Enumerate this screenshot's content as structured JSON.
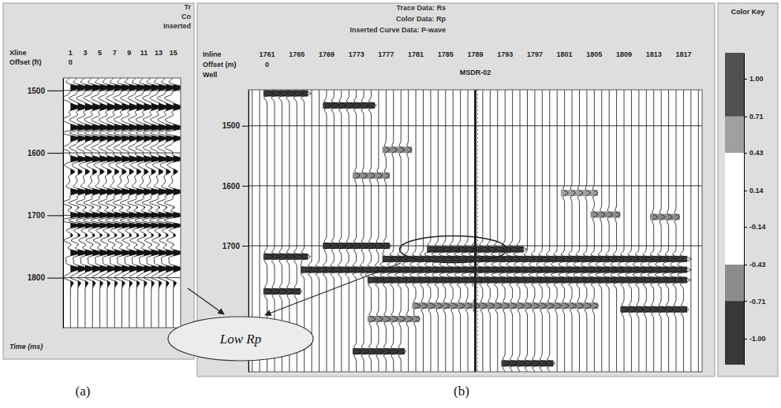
{
  "chart_data": [
    {
      "type": "seismic",
      "panel_label": "(a)",
      "header": [
        "Tr",
        "Co",
        "Inserted"
      ],
      "x_label": "Xline",
      "offset_label": "Offset (ft)",
      "offset": 0,
      "y_label": "Time (ms)",
      "xlim": [
        0,
        16
      ],
      "xticks": [
        1,
        3,
        5,
        7,
        9,
        11,
        13,
        15
      ],
      "ylim": [
        1480,
        1880
      ],
      "yticks": [
        1500,
        1600,
        1700,
        1800
      ],
      "grid": true,
      "events": [
        {
          "time": 1495,
          "rs": 0.9
        },
        {
          "time": 1512,
          "rs": -0.7
        },
        {
          "time": 1527,
          "rs": 0.8
        },
        {
          "time": 1546,
          "rs": -0.6
        },
        {
          "time": 1560,
          "rs": 0.9
        },
        {
          "time": 1576,
          "rs": 0.8
        },
        {
          "time": 1592,
          "rs": -0.7
        },
        {
          "time": 1610,
          "rs": 0.9
        },
        {
          "time": 1630,
          "rs": 0.4
        },
        {
          "time": 1662,
          "rs": 0.9
        },
        {
          "time": 1680,
          "rs": -0.8
        },
        {
          "time": 1700,
          "rs": 1.0
        },
        {
          "time": 1716,
          "rs": 0.9
        },
        {
          "time": 1740,
          "rs": -0.6
        },
        {
          "time": 1760,
          "rs": 0.9
        },
        {
          "time": 1785,
          "rs": 0.8
        },
        {
          "time": 1800,
          "rs": -0.6
        }
      ]
    },
    {
      "type": "seismic",
      "panel_label": "(b)",
      "header": [
        "Trace Data: Rs",
        "Color Data: Rp",
        "Inserted Curve Data: P-wave"
      ],
      "x_label": "Inline",
      "offset_label": "Offset (m)",
      "offset": 0,
      "well_label": "Well",
      "well": {
        "label": "MSDR-02",
        "inline": 1789
      },
      "xlim": [
        1758.5,
        1819.5
      ],
      "xticks": [
        1761,
        1765,
        1769,
        1773,
        1777,
        1781,
        1785,
        1789,
        1793,
        1797,
        1801,
        1805,
        1809,
        1813,
        1817
      ],
      "ylim": [
        1440,
        1910
      ],
      "yticks": [
        1500,
        1600,
        1700
      ],
      "grid": true,
      "events": [
        {
          "time": 1446,
          "inline_start": 1761,
          "inline_end": 1766,
          "rs": 0.8,
          "rp": -0.85
        },
        {
          "time": 1466,
          "inline_start": 1769,
          "inline_end": 1775,
          "rs": 0.6,
          "rp": -0.75
        },
        {
          "time": 1540,
          "inline_start": 1777,
          "inline_end": 1780,
          "rs": 0.4,
          "rp": -0.6
        },
        {
          "time": 1583,
          "inline_start": 1773,
          "inline_end": 1777,
          "rs": 0.4,
          "rp": -0.6
        },
        {
          "time": 1612,
          "inline_start": 1801,
          "inline_end": 1805,
          "rs": 0.4,
          "rp": 0.6
        },
        {
          "time": 1648,
          "inline_start": 1805,
          "inline_end": 1808,
          "rs": 0.4,
          "rp": -0.6
        },
        {
          "time": 1652,
          "inline_start": 1813,
          "inline_end": 1816,
          "rs": 0.4,
          "rp": -0.6
        },
        {
          "time": 1700,
          "inline_start": 1769,
          "inline_end": 1777,
          "rs": 0.6,
          "rp": -0.75
        },
        {
          "time": 1706,
          "inline_start": 1783,
          "inline_end": 1795,
          "rs": 0.8,
          "rp": -0.9
        },
        {
          "time": 1718,
          "inline_start": 1761,
          "inline_end": 1766,
          "rs": 0.7,
          "rp": -0.85
        },
        {
          "time": 1722,
          "inline_start": 1777,
          "inline_end": 1817,
          "rs": 0.9,
          "rp": -0.95
        },
        {
          "time": 1740,
          "inline_start": 1766,
          "inline_end": 1817,
          "rs": 0.9,
          "rp": -0.95
        },
        {
          "time": 1757,
          "inline_start": 1775,
          "inline_end": 1817,
          "rs": 0.8,
          "rp": -0.85
        },
        {
          "time": 1776,
          "inline_start": 1761,
          "inline_end": 1765,
          "rs": 0.6,
          "rp": -0.75
        },
        {
          "time": 1800,
          "inline_start": 1781,
          "inline_end": 1805,
          "rs": 0.5,
          "rp": -0.65
        },
        {
          "time": 1806,
          "inline_start": 1809,
          "inline_end": 1817,
          "rs": 0.6,
          "rp": -0.75
        },
        {
          "time": 1822,
          "inline_start": 1775,
          "inline_end": 1781,
          "rs": 0.5,
          "rp": -0.65
        },
        {
          "time": 1876,
          "inline_start": 1773,
          "inline_end": 1779,
          "rs": 0.6,
          "rp": -0.75
        },
        {
          "time": 1896,
          "inline_start": 1793,
          "inline_end": 1799,
          "rs": 0.6,
          "rp": -0.8
        }
      ],
      "colorbar": {
        "title": "Color Key",
        "range": [
          -1.2,
          1.2
        ],
        "ticks": [
          {
            "value": 1,
            "label": "1.00"
          },
          {
            "value": 0.71,
            "label": "0.71"
          },
          {
            "value": 0.43,
            "label": "0.43"
          },
          {
            "value": 0.14,
            "label": "0.14"
          },
          {
            "value": -0.14,
            "label": "-0.14"
          },
          {
            "value": -0.43,
            "label": "-0.43"
          },
          {
            "value": -0.71,
            "label": "-0.71"
          },
          {
            "value": -1,
            "label": "-1.00"
          }
        ],
        "bins": [
          {
            "from": 0.71,
            "to": 1.2,
            "color": "#505050"
          },
          {
            "from": 0.43,
            "to": 0.71,
            "color": "#a0a0a0"
          },
          {
            "from": -0.43,
            "to": 0.43,
            "color": "#ffffff"
          },
          {
            "from": -0.71,
            "to": -0.43,
            "color": "#8c8c8c"
          },
          {
            "from": -1.2,
            "to": -0.71,
            "color": "#383838"
          }
        ]
      },
      "annotations": [
        {
          "text": "Low Rp"
        }
      ]
    }
  ]
}
